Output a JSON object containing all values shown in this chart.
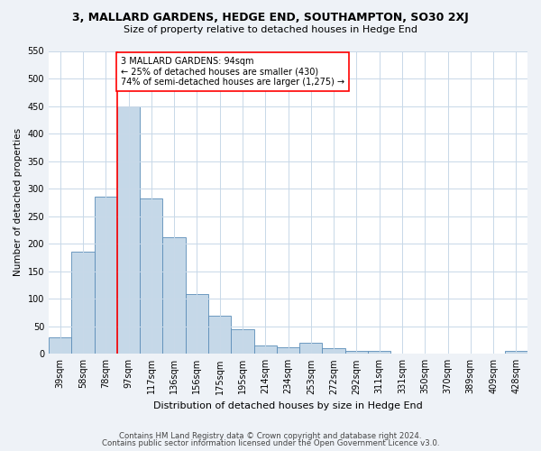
{
  "title": "3, MALLARD GARDENS, HEDGE END, SOUTHAMPTON, SO30 2XJ",
  "subtitle": "Size of property relative to detached houses in Hedge End",
  "xlabel": "Distribution of detached houses by size in Hedge End",
  "ylabel": "Number of detached properties",
  "categories": [
    "39sqm",
    "58sqm",
    "78sqm",
    "97sqm",
    "117sqm",
    "136sqm",
    "156sqm",
    "175sqm",
    "195sqm",
    "214sqm",
    "234sqm",
    "253sqm",
    "272sqm",
    "292sqm",
    "311sqm",
    "331sqm",
    "350sqm",
    "370sqm",
    "389sqm",
    "409sqm",
    "428sqm"
  ],
  "values": [
    30,
    185,
    285,
    450,
    283,
    212,
    108,
    70,
    45,
    15,
    12,
    20,
    10,
    5,
    5,
    0,
    0,
    0,
    0,
    0,
    5
  ],
  "bar_color": "#c5d8e8",
  "bar_edge_color": "#5b8db8",
  "red_line_index": 3,
  "red_line_label": "3 MALLARD GARDENS: 94sqm",
  "annotation_line1": "← 25% of detached houses are smaller (430)",
  "annotation_line2": "74% of semi-detached houses are larger (1,275) →",
  "ylim": [
    0,
    550
  ],
  "yticks": [
    0,
    50,
    100,
    150,
    200,
    250,
    300,
    350,
    400,
    450,
    500,
    550
  ],
  "footer_line1": "Contains HM Land Registry data © Crown copyright and database right 2024.",
  "footer_line2": "Contains public sector information licensed under the Open Government Licence v3.0.",
  "bg_color": "#eef2f7",
  "plot_bg_color": "#ffffff",
  "grid_color": "#c8d8e8"
}
